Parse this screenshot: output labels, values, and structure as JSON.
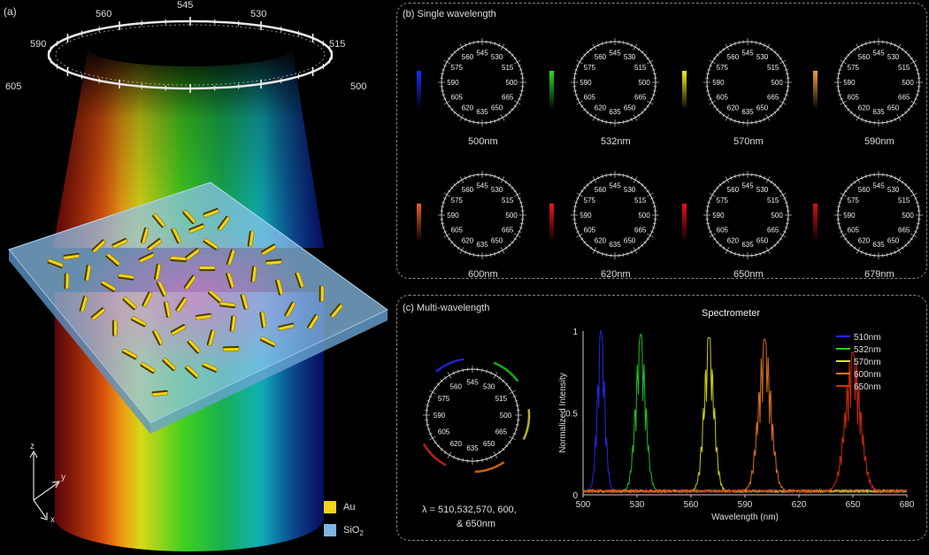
{
  "panel_a": {
    "label": "(a)",
    "ring_labels": [
      "560",
      "545",
      "530",
      "590",
      "515",
      "605",
      "500"
    ],
    "axes": {
      "z": "z",
      "y": "y",
      "x": "x"
    },
    "legend": [
      {
        "name": "Au",
        "color": "#f2d21a"
      },
      {
        "name": "SiO2",
        "color": "#7fb5e0"
      }
    ]
  },
  "panel_b": {
    "title": "(b) Single wavelength",
    "dial_labels": [
      "545",
      "530",
      "515",
      "500",
      "665",
      "650",
      "635",
      "620",
      "605",
      "590",
      "575",
      "560"
    ],
    "items": [
      {
        "caption": "500nm",
        "color": "#1a2dff"
      },
      {
        "caption": "532nm",
        "color": "#27e020"
      },
      {
        "caption": "570nm",
        "color": "#f0f020"
      },
      {
        "caption": "590nm",
        "color": "#f2a030"
      },
      {
        "caption": "600nm",
        "color": "#f06018"
      },
      {
        "caption": "620nm",
        "color": "#f01818"
      },
      {
        "caption": "650nm",
        "color": "#e81010"
      },
      {
        "caption": "679nm",
        "color": "#d81010"
      }
    ]
  },
  "panel_c": {
    "title": "(c) Multi-wavelength",
    "dial_caption_line1": "λ = 510,532,570, 600,",
    "dial_caption_line2": "& 650nm"
  },
  "chart_data": {
    "type": "line",
    "title": "Spectrometer",
    "xlabel": "Wavelength (nm)",
    "ylabel": "Normalized Intensity",
    "xlim": [
      500,
      680
    ],
    "ylim": [
      0,
      1
    ],
    "xticks": [
      500,
      530,
      560,
      590,
      620,
      650,
      680
    ],
    "yticks": [
      0,
      0.5,
      1
    ],
    "legend_position": "top-right",
    "series": [
      {
        "name": "510nm",
        "color": "#2a2aff",
        "peak": 510,
        "width": 3,
        "amplitude": 1.0
      },
      {
        "name": "532nm",
        "color": "#22d022",
        "peak": 532,
        "width": 4,
        "amplitude": 0.98
      },
      {
        "name": "570nm",
        "color": "#e0e020",
        "peak": 570,
        "width": 4,
        "amplitude": 0.96
      },
      {
        "name": "600nm",
        "color": "#f07a18",
        "peak": 601,
        "width": 5,
        "amplitude": 0.95
      },
      {
        "name": "650nm",
        "color": "#e22a10",
        "peak": 650,
        "width": 6,
        "amplitude": 0.87
      }
    ]
  }
}
